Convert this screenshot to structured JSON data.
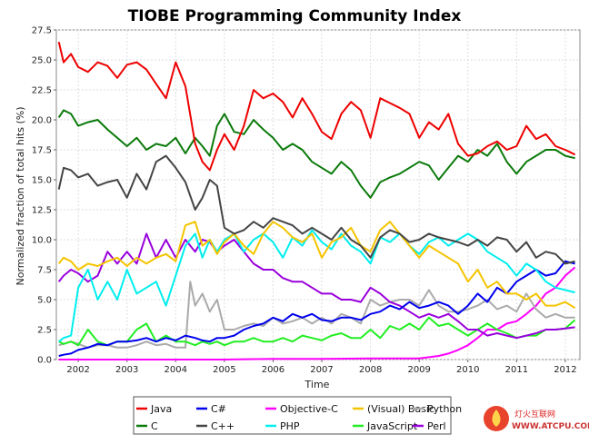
{
  "chart_data": {
    "type": "line",
    "title": "TIOBE Programming Community Index",
    "xlabel": "Time",
    "ylabel": "Normalized fraction of total hits (%)",
    "xlim": [
      2001.55,
      2012.3
    ],
    "ylim": [
      0,
      27.5
    ],
    "yticks": [
      "0.0",
      "2.5",
      "5.0",
      "7.5",
      "10.0",
      "12.5",
      "15.0",
      "17.5",
      "20.0",
      "22.5",
      "25.0",
      "27.5"
    ],
    "xticks": [
      "2002",
      "2003",
      "2004",
      "2005",
      "2006",
      "2007",
      "2008",
      "2009",
      "2010",
      "2011",
      "2012"
    ],
    "grid": true,
    "legend_position": "bottom",
    "series": [
      {
        "name": "Java",
        "color": "#ee0000",
        "x": [
          2001.6,
          2001.7,
          2001.85,
          2002.0,
          2002.2,
          2002.4,
          2002.6,
          2002.8,
          2003.0,
          2003.2,
          2003.4,
          2003.6,
          2003.8,
          2004.0,
          2004.2,
          2004.4,
          2004.55,
          2004.7,
          2004.85,
          2005.0,
          2005.2,
          2005.4,
          2005.6,
          2005.8,
          2006.0,
          2006.2,
          2006.4,
          2006.6,
          2006.8,
          2007.0,
          2007.2,
          2007.4,
          2007.6,
          2007.8,
          2008.0,
          2008.2,
          2008.4,
          2008.6,
          2008.8,
          2009.0,
          2009.2,
          2009.4,
          2009.6,
          2009.8,
          2010.0,
          2010.2,
          2010.4,
          2010.6,
          2010.8,
          2011.0,
          2011.2,
          2011.4,
          2011.6,
          2011.8,
          2012.0,
          2012.2
        ],
        "y": [
          26.5,
          24.8,
          25.5,
          24.4,
          24.0,
          24.8,
          24.5,
          23.5,
          24.6,
          24.8,
          24.2,
          23.0,
          21.8,
          24.8,
          22.8,
          18.0,
          16.5,
          15.8,
          17.5,
          18.8,
          17.5,
          19.5,
          22.5,
          21.8,
          22.2,
          21.5,
          20.2,
          21.8,
          20.5,
          19.0,
          18.4,
          20.5,
          21.5,
          20.8,
          18.5,
          21.8,
          21.4,
          21.0,
          20.5,
          18.5,
          19.8,
          19.2,
          20.5,
          18.0,
          17.0,
          17.2,
          17.8,
          18.2,
          17.5,
          17.8,
          19.5,
          18.4,
          18.8,
          17.8,
          17.5,
          17.1
        ]
      },
      {
        "name": "C",
        "color": "#0b7a0b",
        "x": [
          2001.6,
          2001.7,
          2001.85,
          2002.0,
          2002.2,
          2002.4,
          2002.6,
          2002.8,
          2003.0,
          2003.2,
          2003.4,
          2003.6,
          2003.8,
          2004.0,
          2004.2,
          2004.4,
          2004.55,
          2004.7,
          2004.85,
          2005.0,
          2005.2,
          2005.4,
          2005.6,
          2005.8,
          2006.0,
          2006.2,
          2006.4,
          2006.6,
          2006.8,
          2007.0,
          2007.2,
          2007.4,
          2007.6,
          2007.8,
          2008.0,
          2008.2,
          2008.4,
          2008.6,
          2008.8,
          2009.0,
          2009.2,
          2009.4,
          2009.6,
          2009.8,
          2010.0,
          2010.2,
          2010.4,
          2010.6,
          2010.8,
          2011.0,
          2011.2,
          2011.4,
          2011.6,
          2011.8,
          2012.0,
          2012.2
        ],
        "y": [
          20.2,
          20.8,
          20.5,
          19.5,
          19.8,
          20.0,
          19.2,
          18.5,
          17.8,
          18.5,
          17.5,
          18.0,
          17.8,
          18.5,
          17.2,
          18.5,
          17.8,
          17.0,
          19.5,
          20.5,
          19.0,
          18.8,
          20.0,
          19.2,
          18.5,
          17.5,
          18.0,
          17.5,
          16.5,
          16.0,
          15.5,
          16.5,
          15.8,
          14.5,
          13.5,
          14.8,
          15.2,
          15.5,
          16.0,
          16.5,
          16.2,
          15.0,
          16.0,
          17.0,
          16.5,
          17.5,
          17.0,
          18.0,
          16.5,
          15.5,
          16.5,
          17.0,
          17.5,
          17.5,
          17.0,
          16.8
        ]
      },
      {
        "name": "C++",
        "color": "#444444",
        "x": [
          2001.6,
          2001.7,
          2001.85,
          2002.0,
          2002.2,
          2002.4,
          2002.6,
          2002.8,
          2003.0,
          2003.2,
          2003.4,
          2003.6,
          2003.8,
          2004.0,
          2004.2,
          2004.4,
          2004.55,
          2004.7,
          2004.85,
          2005.0,
          2005.2,
          2005.4,
          2005.6,
          2005.8,
          2006.0,
          2006.2,
          2006.4,
          2006.6,
          2006.8,
          2007.0,
          2007.2,
          2007.4,
          2007.6,
          2007.8,
          2008.0,
          2008.2,
          2008.4,
          2008.6,
          2008.8,
          2009.0,
          2009.2,
          2009.4,
          2009.6,
          2009.8,
          2010.0,
          2010.2,
          2010.4,
          2010.6,
          2010.8,
          2011.0,
          2011.2,
          2011.4,
          2011.6,
          2011.8,
          2012.0,
          2012.2
        ],
        "y": [
          14.2,
          16.0,
          15.8,
          15.2,
          15.5,
          14.5,
          14.8,
          15.0,
          13.5,
          15.5,
          14.2,
          16.5,
          17.0,
          16.0,
          14.8,
          12.5,
          13.5,
          15.0,
          14.5,
          11.0,
          10.5,
          10.8,
          11.5,
          11.0,
          11.8,
          11.5,
          11.2,
          10.5,
          11.0,
          10.5,
          10.0,
          11.0,
          10.0,
          9.5,
          8.5,
          10.2,
          10.8,
          10.5,
          9.8,
          10.0,
          10.5,
          10.2,
          10.0,
          9.8,
          9.5,
          10.0,
          9.5,
          10.2,
          10.0,
          9.0,
          9.8,
          8.5,
          9.0,
          8.8,
          8.0,
          8.2
        ]
      },
      {
        "name": "C#",
        "color": "#0000ee",
        "x": [
          2001.6,
          2001.7,
          2001.85,
          2002.0,
          2002.2,
          2002.4,
          2002.6,
          2002.8,
          2003.0,
          2003.2,
          2003.4,
          2003.6,
          2003.8,
          2004.0,
          2004.2,
          2004.4,
          2004.55,
          2004.7,
          2004.85,
          2005.0,
          2005.2,
          2005.4,
          2005.6,
          2005.8,
          2006.0,
          2006.2,
          2006.4,
          2006.6,
          2006.8,
          2007.0,
          2007.2,
          2007.4,
          2007.6,
          2007.8,
          2008.0,
          2008.2,
          2008.4,
          2008.6,
          2008.8,
          2009.0,
          2009.2,
          2009.4,
          2009.6,
          2009.8,
          2010.0,
          2010.2,
          2010.4,
          2010.6,
          2010.8,
          2011.0,
          2011.2,
          2011.4,
          2011.6,
          2011.8,
          2012.0,
          2012.2
        ],
        "y": [
          0.3,
          0.4,
          0.5,
          0.8,
          1.0,
          1.3,
          1.2,
          1.5,
          1.5,
          1.6,
          1.8,
          1.5,
          1.8,
          1.6,
          2.0,
          1.8,
          1.6,
          1.5,
          1.8,
          1.8,
          2.0,
          2.5,
          2.8,
          3.0,
          3.5,
          3.2,
          3.8,
          3.5,
          3.8,
          3.3,
          3.2,
          3.5,
          3.5,
          3.3,
          3.8,
          4.0,
          4.5,
          4.2,
          4.8,
          4.3,
          4.5,
          4.8,
          4.5,
          3.8,
          4.5,
          5.5,
          4.8,
          6.0,
          5.5,
          6.5,
          7.0,
          7.5,
          7.0,
          7.2,
          8.2,
          8.0
        ]
      },
      {
        "name": "Objective-C",
        "color": "#ff00ff",
        "x": [
          2001.6,
          2002.0,
          2003.0,
          2004.0,
          2005.0,
          2006.0,
          2007.0,
          2008.0,
          2008.8,
          2009.0,
          2009.4,
          2009.6,
          2009.8,
          2010.0,
          2010.2,
          2010.4,
          2010.6,
          2010.8,
          2011.0,
          2011.2,
          2011.4,
          2011.6,
          2011.8,
          2012.0,
          2012.2
        ],
        "y": [
          0.0,
          0.0,
          0.0,
          0.0,
          0.0,
          0.05,
          0.05,
          0.1,
          0.1,
          0.1,
          0.3,
          0.5,
          0.8,
          1.2,
          1.8,
          2.5,
          2.5,
          3.0,
          3.2,
          3.8,
          4.5,
          5.5,
          6.0,
          7.0,
          7.7
        ]
      },
      {
        "name": "(Visual) Basic",
        "color": "#f5c400",
        "x": [
          2001.6,
          2001.7,
          2001.85,
          2002.0,
          2002.2,
          2002.4,
          2002.6,
          2002.8,
          2003.0,
          2003.2,
          2003.4,
          2003.6,
          2003.8,
          2004.0,
          2004.2,
          2004.4,
          2004.55,
          2004.7,
          2004.85,
          2005.0,
          2005.2,
          2005.4,
          2005.6,
          2005.8,
          2006.0,
          2006.2,
          2006.4,
          2006.6,
          2006.8,
          2007.0,
          2007.2,
          2007.4,
          2007.6,
          2007.8,
          2008.0,
          2008.2,
          2008.4,
          2008.6,
          2008.8,
          2009.0,
          2009.2,
          2009.4,
          2009.6,
          2009.8,
          2010.0,
          2010.2,
          2010.4,
          2010.6,
          2010.8,
          2011.0,
          2011.2,
          2011.4,
          2011.6,
          2011.8,
          2012.0,
          2012.2
        ],
        "y": [
          8.0,
          8.5,
          8.2,
          7.5,
          8.0,
          7.8,
          8.2,
          8.5,
          7.8,
          8.5,
          8.0,
          8.5,
          8.8,
          8.2,
          11.2,
          11.5,
          9.5,
          10.0,
          8.8,
          9.8,
          10.5,
          9.5,
          8.8,
          10.5,
          11.5,
          11.0,
          10.2,
          9.8,
          10.5,
          8.5,
          9.8,
          10.2,
          11.0,
          9.5,
          9.0,
          10.8,
          11.5,
          10.5,
          9.5,
          8.5,
          9.5,
          9.0,
          8.5,
          8.0,
          6.5,
          7.5,
          6.0,
          6.5,
          5.5,
          5.5,
          5.0,
          5.5,
          4.5,
          4.5,
          4.8,
          4.3
        ]
      },
      {
        "name": "PHP",
        "color": "#00eeee",
        "x": [
          2001.6,
          2001.7,
          2001.85,
          2002.0,
          2002.2,
          2002.4,
          2002.6,
          2002.8,
          2003.0,
          2003.2,
          2003.4,
          2003.6,
          2003.8,
          2004.0,
          2004.2,
          2004.4,
          2004.55,
          2004.7,
          2004.85,
          2005.0,
          2005.2,
          2005.4,
          2005.6,
          2005.8,
          2006.0,
          2006.2,
          2006.4,
          2006.6,
          2006.8,
          2007.0,
          2007.2,
          2007.4,
          2007.6,
          2007.8,
          2008.0,
          2008.2,
          2008.4,
          2008.6,
          2008.8,
          2009.0,
          2009.2,
          2009.4,
          2009.6,
          2009.8,
          2010.0,
          2010.2,
          2010.4,
          2010.6,
          2010.8,
          2011.0,
          2011.2,
          2011.4,
          2011.6,
          2011.8,
          2012.0,
          2012.2
        ],
        "y": [
          1.5,
          1.8,
          2.0,
          6.0,
          7.5,
          5.0,
          6.5,
          5.0,
          7.5,
          5.5,
          6.0,
          6.5,
          4.5,
          7.0,
          9.5,
          10.5,
          8.5,
          10.0,
          9.0,
          10.0,
          10.5,
          9.0,
          10.0,
          10.5,
          9.8,
          8.5,
          10.2,
          9.5,
          10.8,
          9.8,
          9.2,
          10.5,
          9.5,
          9.0,
          8.0,
          10.2,
          9.8,
          10.5,
          9.5,
          8.8,
          9.8,
          10.2,
          9.5,
          10.0,
          10.5,
          10.0,
          9.0,
          8.5,
          8.0,
          7.0,
          8.0,
          7.5,
          6.5,
          6.0,
          5.8,
          5.6
        ]
      },
      {
        "name": "Python",
        "color": "#aaaaaa",
        "x": [
          2001.6,
          2001.7,
          2001.85,
          2002.0,
          2002.2,
          2002.4,
          2002.6,
          2002.8,
          2003.0,
          2003.2,
          2003.4,
          2003.6,
          2003.8,
          2004.0,
          2004.2,
          2004.3,
          2004.4,
          2004.55,
          2004.7,
          2004.85,
          2005.0,
          2005.2,
          2005.4,
          2005.6,
          2005.8,
          2006.0,
          2006.2,
          2006.4,
          2006.6,
          2006.8,
          2007.0,
          2007.2,
          2007.4,
          2007.6,
          2007.8,
          2008.0,
          2008.2,
          2008.4,
          2008.6,
          2008.8,
          2009.0,
          2009.2,
          2009.4,
          2009.6,
          2009.8,
          2010.0,
          2010.2,
          2010.4,
          2010.6,
          2010.8,
          2011.0,
          2011.2,
          2011.4,
          2011.6,
          2011.8,
          2012.0,
          2012.2
        ],
        "y": [
          1.2,
          1.3,
          1.5,
          1.3,
          1.0,
          1.2,
          1.2,
          1.0,
          1.0,
          1.2,
          1.5,
          1.2,
          1.3,
          1.0,
          1.0,
          6.5,
          4.5,
          5.5,
          4.0,
          5.0,
          2.5,
          2.5,
          2.8,
          3.0,
          2.8,
          3.5,
          3.0,
          3.2,
          3.5,
          3.0,
          3.5,
          3.0,
          3.8,
          3.5,
          3.0,
          5.0,
          4.5,
          4.8,
          5.0,
          5.0,
          4.5,
          5.8,
          4.5,
          4.0,
          4.0,
          4.2,
          4.5,
          5.0,
          4.2,
          4.5,
          4.0,
          5.5,
          4.2,
          3.5,
          3.8,
          3.5,
          3.5
        ]
      },
      {
        "name": "JavaScript",
        "color": "#22ee22",
        "x": [
          2001.6,
          2001.7,
          2001.85,
          2002.0,
          2002.2,
          2002.4,
          2002.6,
          2002.8,
          2003.0,
          2003.2,
          2003.4,
          2003.6,
          2003.8,
          2004.0,
          2004.2,
          2004.4,
          2004.55,
          2004.7,
          2004.85,
          2005.0,
          2005.2,
          2005.4,
          2005.6,
          2005.8,
          2006.0,
          2006.2,
          2006.4,
          2006.6,
          2006.8,
          2007.0,
          2007.2,
          2007.4,
          2007.6,
          2007.8,
          2008.0,
          2008.2,
          2008.4,
          2008.6,
          2008.8,
          2009.0,
          2009.2,
          2009.4,
          2009.6,
          2009.8,
          2010.0,
          2010.2,
          2010.4,
          2010.6,
          2010.8,
          2011.0,
          2011.2,
          2011.4,
          2011.6,
          2011.8,
          2012.0,
          2012.2
        ],
        "y": [
          1.5,
          1.3,
          1.5,
          1.2,
          2.5,
          1.5,
          1.2,
          1.5,
          1.5,
          2.5,
          3.0,
          1.5,
          2.0,
          1.5,
          1.5,
          1.2,
          1.5,
          1.3,
          1.5,
          1.2,
          1.5,
          1.5,
          1.8,
          1.5,
          1.5,
          1.8,
          1.5,
          2.0,
          1.8,
          1.6,
          2.0,
          2.2,
          1.8,
          1.8,
          2.5,
          1.8,
          2.8,
          2.5,
          3.0,
          2.5,
          3.5,
          2.8,
          3.0,
          2.5,
          2.0,
          2.5,
          3.0,
          2.5,
          2.2,
          1.8,
          2.0,
          2.0,
          2.5,
          2.5,
          2.6,
          3.3
        ]
      },
      {
        "name": "Perl",
        "color": "#9900dd",
        "x": [
          2001.6,
          2001.7,
          2001.85,
          2002.0,
          2002.2,
          2002.4,
          2002.6,
          2002.8,
          2003.0,
          2003.2,
          2003.4,
          2003.6,
          2003.8,
          2004.0,
          2004.2,
          2004.4,
          2004.55,
          2004.7,
          2004.85,
          2005.0,
          2005.2,
          2005.4,
          2005.6,
          2005.8,
          2006.0,
          2006.2,
          2006.4,
          2006.6,
          2006.8,
          2007.0,
          2007.2,
          2007.4,
          2007.6,
          2007.8,
          2008.0,
          2008.2,
          2008.4,
          2008.6,
          2008.8,
          2009.0,
          2009.2,
          2009.4,
          2009.6,
          2009.8,
          2010.0,
          2010.2,
          2010.4,
          2010.6,
          2010.8,
          2011.0,
          2011.2,
          2011.4,
          2011.6,
          2011.8,
          2012.0,
          2012.2
        ],
        "y": [
          6.5,
          7.0,
          7.5,
          7.2,
          6.5,
          7.0,
          9.0,
          8.0,
          9.0,
          8.0,
          10.5,
          8.5,
          10.0,
          8.5,
          10.0,
          9.0,
          10.0,
          9.8,
          9.0,
          9.5,
          10.0,
          9.0,
          8.0,
          7.5,
          7.5,
          6.8,
          6.5,
          6.5,
          6.0,
          5.5,
          5.5,
          5.0,
          5.0,
          4.8,
          6.0,
          5.5,
          4.8,
          4.5,
          4.0,
          3.5,
          3.8,
          3.5,
          3.8,
          3.2,
          2.5,
          2.5,
          2.0,
          2.2,
          2.0,
          1.8,
          2.0,
          2.2,
          2.5,
          2.5,
          2.6,
          2.7
        ]
      }
    ]
  },
  "legend_order": [
    "Java",
    "C#",
    "Objective-C",
    "(Visual) Basic",
    "Python",
    "C",
    "C++",
    "PHP",
    "JavaScript",
    "Perl"
  ],
  "watermark": {
    "text": "灯火互联网",
    "url": "WWW.ATCPU.COM"
  }
}
